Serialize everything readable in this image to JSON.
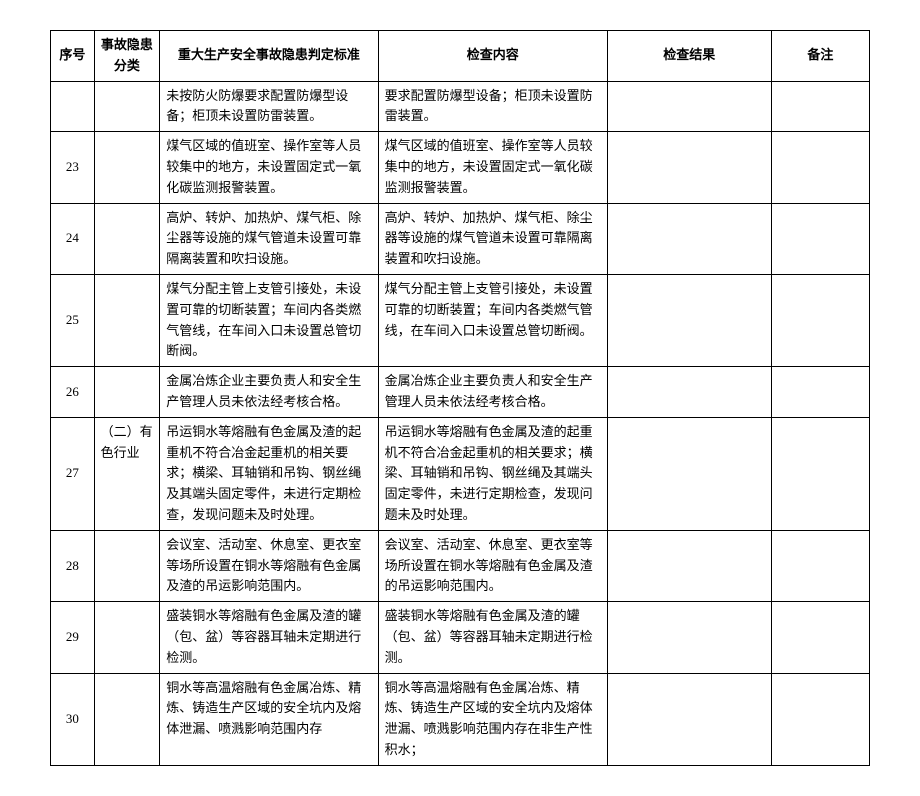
{
  "table": {
    "headers": {
      "seq": "序号",
      "category": "事故隐患分类",
      "standard": "重大生产安全事故隐患判定标准",
      "check_content": "检查内容",
      "check_result": "检查结果",
      "note": "备注"
    },
    "rows": [
      {
        "seq": "",
        "category": "",
        "standard": "未按防火防爆要求配置防爆型设备；柜顶未设置防雷装置。",
        "check_content": "要求配置防爆型设备；柜顶未设置防雷装置。",
        "check_result": "",
        "note": ""
      },
      {
        "seq": "23",
        "category": "",
        "standard": "煤气区域的值班室、操作室等人员较集中的地方，未设置固定式一氧化碳监测报警装置。",
        "check_content": "煤气区域的值班室、操作室等人员较集中的地方，未设置固定式一氧化碳监测报警装置。",
        "check_result": "",
        "note": ""
      },
      {
        "seq": "24",
        "category": "",
        "standard": "高炉、转炉、加热炉、煤气柜、除尘器等设施的煤气管道未设置可靠隔离装置和吹扫设施。",
        "check_content": "高炉、转炉、加热炉、煤气柜、除尘器等设施的煤气管道未设置可靠隔离装置和吹扫设施。",
        "check_result": "",
        "note": ""
      },
      {
        "seq": "25",
        "category": "",
        "standard": "煤气分配主管上支管引接处，未设置可靠的切断装置；车间内各类燃气管线，在车间入口未设置总管切断阀。",
        "check_content": "煤气分配主管上支管引接处，未设置可靠的切断装置；车间内各类燃气管线，在车间入口未设置总管切断阀。",
        "check_result": "",
        "note": ""
      },
      {
        "seq": "26",
        "category": "",
        "standard": "金属冶炼企业主要负责人和安全生产管理人员未依法经考核合格。",
        "check_content": "金属冶炼企业主要负责人和安全生产管理人员未依法经考核合格。",
        "check_result": "",
        "note": ""
      },
      {
        "seq": "27",
        "category": "（二）有色行业",
        "standard": "吊运铜水等熔融有色金属及渣的起重机不符合冶金起重机的相关要求；横梁、耳轴销和吊钩、钢丝绳及其端头固定零件，未进行定期检查，发现问题未及时处理。",
        "check_content": "吊运铜水等熔融有色金属及渣的起重机不符合冶金起重机的相关要求；横梁、耳轴销和吊钩、钢丝绳及其端头固定零件，未进行定期检查，发现问题未及时处理。",
        "check_result": "",
        "note": ""
      },
      {
        "seq": "28",
        "category": "",
        "standard": "会议室、活动室、休息室、更衣室等场所设置在铜水等熔融有色金属及渣的吊运影响范围内。",
        "check_content": "会议室、活动室、休息室、更衣室等场所设置在铜水等熔融有色金属及渣的吊运影响范围内。",
        "check_result": "",
        "note": ""
      },
      {
        "seq": "29",
        "category": "",
        "standard": "盛装铜水等熔融有色金属及渣的罐（包、盆）等容器耳轴未定期进行检测。",
        "check_content": "盛装铜水等熔融有色金属及渣的罐（包、盆）等容器耳轴未定期进行检测。",
        "check_result": "",
        "note": ""
      },
      {
        "seq": "30",
        "category": "",
        "standard": "铜水等高温熔融有色金属冶炼、精炼、铸造生产区域的安全坑内及熔体泄漏、喷溅影响范围内存",
        "check_content": "铜水等高温熔融有色金属冶炼、精炼、铸造生产区域的安全坑内及熔体泄漏、喷溅影响范围内存在非生产性积水；",
        "check_result": "",
        "note": ""
      }
    ]
  }
}
